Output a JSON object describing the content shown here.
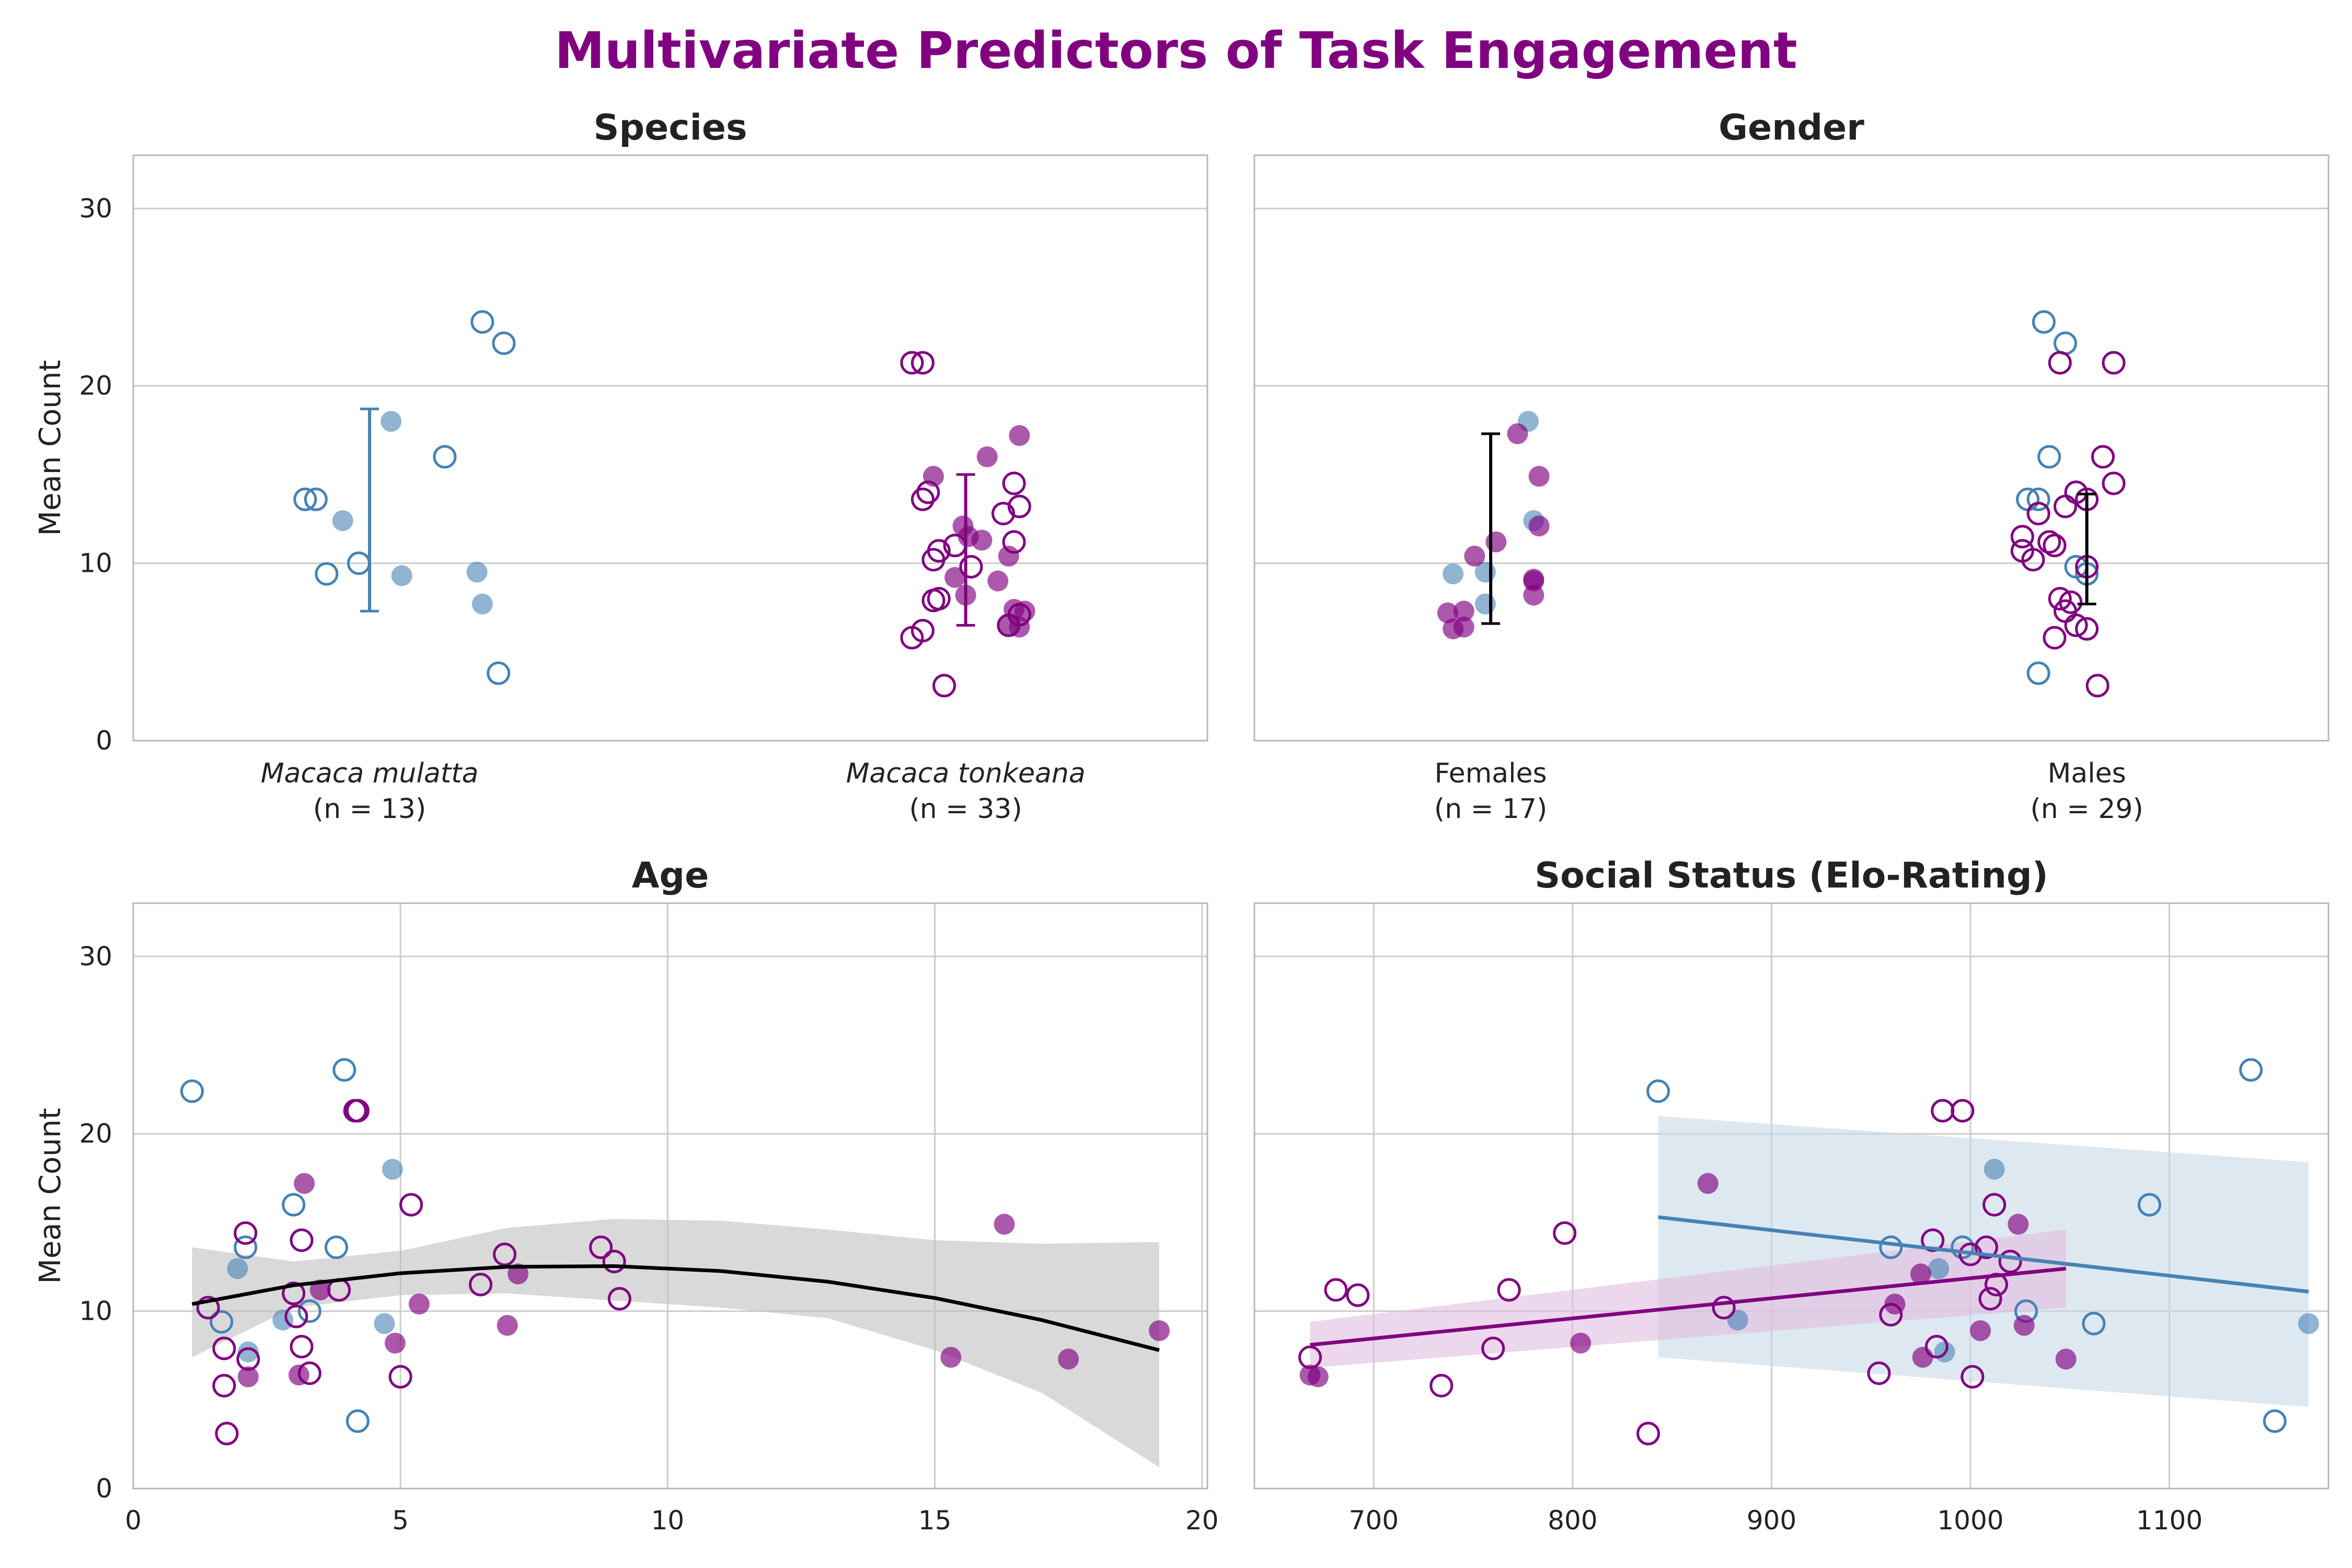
{
  "title": "Multivariate Predictors of Task Engagement",
  "colors": {
    "title": "#800080",
    "mulatta": "#4682b4",
    "tonkeana": "#800080",
    "female_errbar": "#000000",
    "grid": "#cccccc",
    "trend_age": "#000000",
    "ci_age": "#bfbfbf",
    "ci_blue": "#c8d8e8",
    "ci_purple": "#e0bce0"
  },
  "chart_data": [
    {
      "type": "scatter",
      "title": "Species",
      "ylabel": "Mean Count",
      "ylim": [
        0,
        33
      ],
      "yticks": [
        0,
        10,
        20,
        30
      ],
      "categories": [
        {
          "label": "Macaca mulatta",
          "n_label": "(n = 13)"
        },
        {
          "label": "Macaca tonkeana",
          "n_label": "(n = 33)"
        }
      ],
      "series": [
        {
          "group": 0,
          "marker": "filled",
          "color": "mulatta",
          "points": [
            [
              -0.05,
              12.4
            ],
            [
              0.21,
              7.7
            ],
            [
              0.04,
              18.0
            ],
            [
              0.06,
              9.3
            ],
            [
              0.2,
              9.5
            ]
          ]
        },
        {
          "group": 0,
          "marker": "open",
          "color": "mulatta",
          "points": [
            [
              0.21,
              23.6
            ],
            [
              0.25,
              22.4
            ],
            [
              -0.12,
              13.6
            ],
            [
              -0.1,
              13.6
            ],
            [
              0.14,
              16.0
            ],
            [
              -0.02,
              10.0
            ],
            [
              -0.08,
              9.4
            ],
            [
              0.24,
              3.8
            ]
          ]
        },
        {
          "group": 1,
          "marker": "filled",
          "color": "tonkeana",
          "points": [
            [
              -0.06,
              14.9
            ],
            [
              0.04,
              16.0
            ],
            [
              0.1,
              17.2
            ],
            [
              -0.005,
              12.1
            ],
            [
              0.005,
              11.5
            ],
            [
              0.03,
              11.3
            ],
            [
              -0.02,
              9.2
            ],
            [
              0.0,
              8.2
            ],
            [
              0.06,
              9.0
            ],
            [
              0.08,
              10.4
            ],
            [
              0.09,
              7.4
            ],
            [
              0.11,
              7.3
            ],
            [
              0.1,
              6.4
            ],
            [
              0.08,
              6.5
            ]
          ]
        },
        {
          "group": 1,
          "marker": "open",
          "color": "tonkeana",
          "points": [
            [
              -0.1,
              21.3
            ],
            [
              -0.08,
              21.3
            ],
            [
              -0.07,
              14.0
            ],
            [
              -0.08,
              13.6
            ],
            [
              0.09,
              14.5
            ],
            [
              0.1,
              13.2
            ],
            [
              0.07,
              12.8
            ],
            [
              0.09,
              11.2
            ],
            [
              -0.02,
              11.0
            ],
            [
              -0.05,
              10.7
            ],
            [
              -0.06,
              10.2
            ],
            [
              0.01,
              9.8
            ],
            [
              -0.05,
              8.0
            ],
            [
              -0.06,
              7.9
            ],
            [
              -0.08,
              6.2
            ],
            [
              -0.1,
              5.8
            ],
            [
              0.08,
              6.5
            ],
            [
              -0.04,
              3.1
            ],
            [
              0.1,
              7.1
            ]
          ]
        }
      ],
      "error_bars": [
        {
          "group": 0,
          "mean": 13.0,
          "low": 7.3,
          "high": 18.7,
          "color": "mulatta",
          "offset": 0.0
        },
        {
          "group": 1,
          "mean": 10.8,
          "low": 6.5,
          "high": 15.0,
          "color": "tonkeana",
          "offset": 0.0
        }
      ]
    },
    {
      "type": "scatter",
      "title": "Gender",
      "ylim": [
        0,
        33
      ],
      "yticks": [
        0,
        10,
        20,
        30
      ],
      "categories": [
        {
          "label": "Females",
          "n_label": "(n = 17)"
        },
        {
          "label": "Males",
          "n_label": "(n = 29)"
        }
      ],
      "series": [
        {
          "group": 0,
          "marker": "filled",
          "color": "mulatta",
          "points": [
            [
              0.07,
              18.0
            ],
            [
              0.08,
              12.4
            ],
            [
              -0.07,
              9.4
            ],
            [
              -0.01,
              9.5
            ],
            [
              -0.01,
              7.7
            ]
          ]
        },
        {
          "group": 0,
          "marker": "filled",
          "color": "tonkeana",
          "points": [
            [
              0.05,
              17.3
            ],
            [
              0.09,
              14.9
            ],
            [
              0.09,
              12.1
            ],
            [
              0.01,
              11.2
            ],
            [
              -0.03,
              10.4
            ],
            [
              0.08,
              9.1
            ],
            [
              0.08,
              9.0
            ],
            [
              0.08,
              8.2
            ],
            [
              -0.05,
              7.3
            ],
            [
              -0.08,
              7.2
            ],
            [
              -0.07,
              6.3
            ],
            [
              -0.05,
              6.4
            ]
          ]
        },
        {
          "group": 1,
          "marker": "open",
          "color": "mulatta",
          "points": [
            [
              -0.08,
              23.6
            ],
            [
              -0.04,
              22.4
            ],
            [
              -0.07,
              16.0
            ],
            [
              -0.11,
              13.6
            ],
            [
              -0.09,
              13.6
            ],
            [
              -0.02,
              9.8
            ],
            [
              0.0,
              9.4
            ],
            [
              -0.09,
              3.8
            ]
          ]
        },
        {
          "group": 1,
          "marker": "open",
          "color": "tonkeana",
          "points": [
            [
              0.05,
              21.3
            ],
            [
              -0.05,
              21.3
            ],
            [
              0.03,
              16.0
            ],
            [
              0.05,
              14.5
            ],
            [
              -0.02,
              14.0
            ],
            [
              0.0,
              13.6
            ],
            [
              -0.04,
              13.2
            ],
            [
              -0.09,
              12.8
            ],
            [
              -0.07,
              11.2
            ],
            [
              -0.12,
              11.5
            ],
            [
              -0.12,
              10.7
            ],
            [
              -0.1,
              10.2
            ],
            [
              -0.06,
              11.0
            ],
            [
              -0.05,
              8.0
            ],
            [
              -0.03,
              7.8
            ],
            [
              -0.04,
              7.3
            ],
            [
              -0.02,
              6.5
            ],
            [
              0.0,
              6.3
            ],
            [
              -0.06,
              5.8
            ],
            [
              0.0,
              9.8
            ],
            [
              0.02,
              3.1
            ]
          ]
        }
      ],
      "error_bars": [
        {
          "group": 0,
          "mean": 11.5,
          "low": 6.6,
          "high": 17.3,
          "color": "female_errbar",
          "offset": 0.0
        },
        {
          "group": 1,
          "mean": 11.9,
          "low": 7.7,
          "high": 13.9,
          "color": "female_errbar",
          "offset": 0.0
        }
      ]
    },
    {
      "type": "scatter",
      "title": "Age",
      "ylabel": "Mean Count",
      "xlim": [
        0,
        20.1
      ],
      "xticks": [
        0,
        5,
        10,
        15,
        20
      ],
      "ylim": [
        0,
        33
      ],
      "yticks": [
        0,
        10,
        20,
        30
      ],
      "series": [
        {
          "marker": "filled",
          "color": "mulatta",
          "points": [
            [
              1.95,
              12.4
            ],
            [
              2.15,
              7.7
            ],
            [
              2.8,
              9.5
            ],
            [
              4.85,
              18.0
            ],
            [
              4.7,
              9.3
            ]
          ]
        },
        {
          "marker": "open",
          "color": "mulatta",
          "points": [
            [
              1.1,
              22.4
            ],
            [
              3.95,
              23.6
            ],
            [
              2.1,
              13.6
            ],
            [
              3.0,
              16.0
            ],
            [
              3.8,
              13.6
            ],
            [
              1.65,
              9.4
            ],
            [
              3.3,
              10.0
            ],
            [
              4.2,
              3.8
            ]
          ]
        },
        {
          "marker": "filled",
          "color": "tonkeana",
          "points": [
            [
              3.2,
              17.2
            ],
            [
              3.1,
              6.4
            ],
            [
              3.5,
              11.2
            ],
            [
              4.9,
              8.2
            ],
            [
              5.35,
              10.4
            ],
            [
              7.0,
              9.2
            ],
            [
              7.2,
              12.1
            ],
            [
              16.3,
              14.9
            ],
            [
              15.3,
              7.4
            ],
            [
              17.5,
              7.3
            ],
            [
              19.2,
              8.9
            ],
            [
              2.15,
              6.3
            ]
          ]
        },
        {
          "marker": "open",
          "color": "tonkeana",
          "points": [
            [
              4.15,
              21.3
            ],
            [
              4.2,
              21.3
            ],
            [
              5.2,
              16.0
            ],
            [
              2.1,
              14.4
            ],
            [
              3.15,
              14.0
            ],
            [
              6.95,
              13.2
            ],
            [
              8.75,
              13.6
            ],
            [
              9.0,
              12.8
            ],
            [
              9.1,
              10.7
            ],
            [
              6.5,
              11.5
            ],
            [
              3.0,
              11.0
            ],
            [
              3.05,
              9.7
            ],
            [
              3.85,
              11.2
            ],
            [
              1.4,
              10.2
            ],
            [
              3.15,
              8.0
            ],
            [
              1.7,
              7.9
            ],
            [
              2.15,
              7.3
            ],
            [
              3.3,
              6.5
            ],
            [
              1.7,
              5.8
            ],
            [
              5.0,
              6.3
            ],
            [
              1.75,
              3.1
            ]
          ]
        }
      ],
      "trend": {
        "x": [
          1.1,
          3,
          5,
          7,
          9,
          11,
          13,
          15,
          17,
          19.2
        ],
        "y": [
          10.4,
          11.46,
          12.14,
          12.5,
          12.54,
          12.26,
          11.66,
          10.74,
          9.5,
          7.8
        ],
        "ci_low": [
          7.4,
          10.2,
          10.9,
          11.0,
          10.6,
          10.2,
          9.6,
          7.8,
          5.4,
          1.2
        ],
        "ci_high": [
          13.6,
          12.8,
          13.4,
          14.7,
          15.2,
          15.1,
          14.6,
          14.0,
          13.8,
          13.9
        ],
        "color": "trend_age",
        "ci_color": "ci_age"
      }
    },
    {
      "type": "scatter",
      "title": "Social Status (Elo-Rating)",
      "xlim": [
        640,
        1180
      ],
      "xticks": [
        700,
        800,
        900,
        1000,
        1100
      ],
      "ylim": [
        0,
        33
      ],
      "yticks": [
        0,
        10,
        20,
        30
      ],
      "series": [
        {
          "marker": "filled",
          "color": "mulatta",
          "points": [
            [
              1012,
              18.0
            ],
            [
              984,
              12.4
            ],
            [
              987,
              7.7
            ],
            [
              883,
              9.5
            ],
            [
              1170,
              9.3
            ]
          ]
        },
        {
          "marker": "open",
          "color": "mulatta",
          "points": [
            [
              843,
              22.4
            ],
            [
              1141,
              23.6
            ],
            [
              1090,
              16.0
            ],
            [
              960,
              13.6
            ],
            [
              996,
              13.6
            ],
            [
              1028,
              10.0
            ],
            [
              1062,
              9.3
            ],
            [
              1153,
              3.8
            ]
          ]
        },
        {
          "marker": "filled",
          "color": "tonkeana",
          "points": [
            [
              868,
              17.2
            ],
            [
              1024,
              14.9
            ],
            [
              975,
              12.1
            ],
            [
              962,
              10.4
            ],
            [
              804,
              8.2
            ],
            [
              1005,
              8.9
            ],
            [
              1027,
              9.2
            ],
            [
              976,
              7.4
            ],
            [
              1048,
              7.3
            ],
            [
              672,
              6.3
            ],
            [
              668,
              6.4
            ]
          ]
        },
        {
          "marker": "open",
          "color": "tonkeana",
          "points": [
            [
              986,
              21.3
            ],
            [
              996,
              21.3
            ],
            [
              1012,
              16.0
            ],
            [
              796,
              14.4
            ],
            [
              981,
              14.0
            ],
            [
              1008,
              13.6
            ],
            [
              1000,
              13.2
            ],
            [
              1020,
              12.8
            ],
            [
              1013,
              11.5
            ],
            [
              1010,
              10.7
            ],
            [
              768,
              11.2
            ],
            [
              681,
              11.2
            ],
            [
              692,
              10.9
            ],
            [
              876,
              10.2
            ],
            [
              960,
              9.8
            ],
            [
              983,
              8.0
            ],
            [
              760,
              7.9
            ],
            [
              668,
              7.4
            ],
            [
              954,
              6.5
            ],
            [
              1001,
              6.3
            ],
            [
              734,
              5.8
            ],
            [
              838,
              3.1
            ]
          ]
        }
      ],
      "trends": [
        {
          "x": [
            843,
            1170
          ],
          "y": [
            15.3,
            11.1
          ],
          "ci_low": [
            7.4,
            4.6
          ],
          "ci_high": [
            21.0,
            18.4
          ],
          "color": "mulatta",
          "ci_color": "ci_blue"
        },
        {
          "x": [
            668,
            1048
          ],
          "y": [
            8.1,
            12.4
          ],
          "ci_low": [
            6.8,
            10.2
          ],
          "ci_high": [
            9.4,
            14.6
          ],
          "color": "tonkeana",
          "ci_color": "ci_purple"
        }
      ]
    }
  ]
}
